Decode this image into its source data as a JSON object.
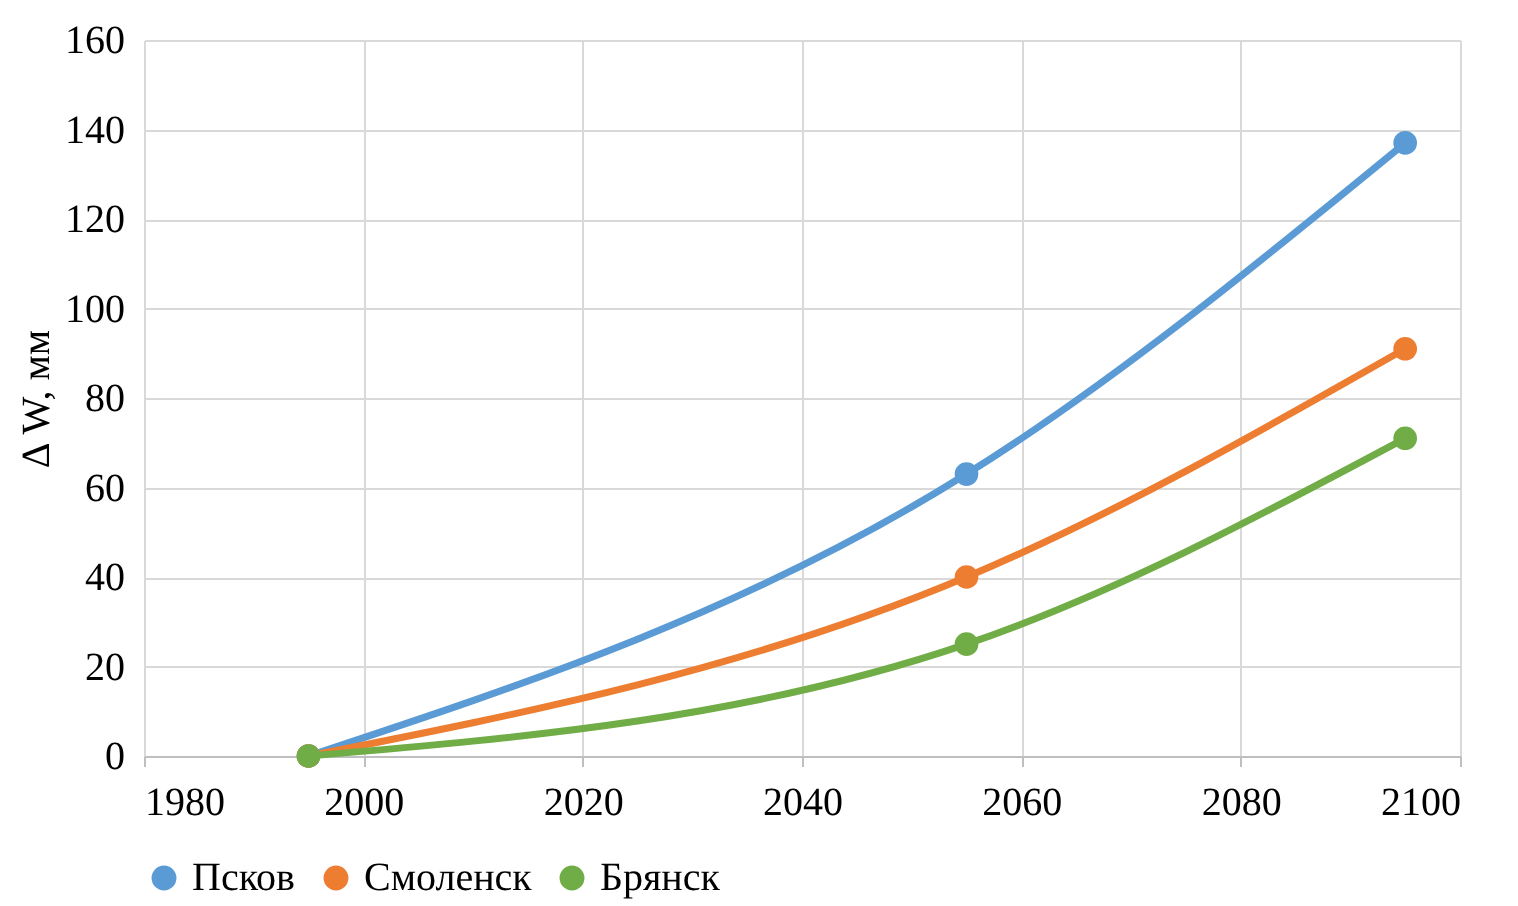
{
  "chart_data": {
    "type": "line",
    "ylabel": "Δ W, мм",
    "x": [
      1995,
      2055,
      2095
    ],
    "series": [
      {
        "name": "Псков",
        "color": "#5b9bd5",
        "values": [
          0,
          63,
          137
        ]
      },
      {
        "name": "Смоленск",
        "color": "#ed7d31",
        "values": [
          0,
          40,
          91
        ]
      },
      {
        "name": "Брянск",
        "color": "#70ad47",
        "values": [
          0,
          25,
          71
        ]
      }
    ],
    "xlim": [
      1980,
      2100
    ],
    "xticks": [
      1980,
      2000,
      2020,
      2040,
      2060,
      2080,
      2100
    ],
    "ylim": [
      0,
      160
    ],
    "yticks": [
      0,
      20,
      40,
      60,
      80,
      100,
      120,
      140,
      160
    ],
    "grid": true,
    "legend": "bottom",
    "marker": "circle",
    "line_style": "solid"
  }
}
